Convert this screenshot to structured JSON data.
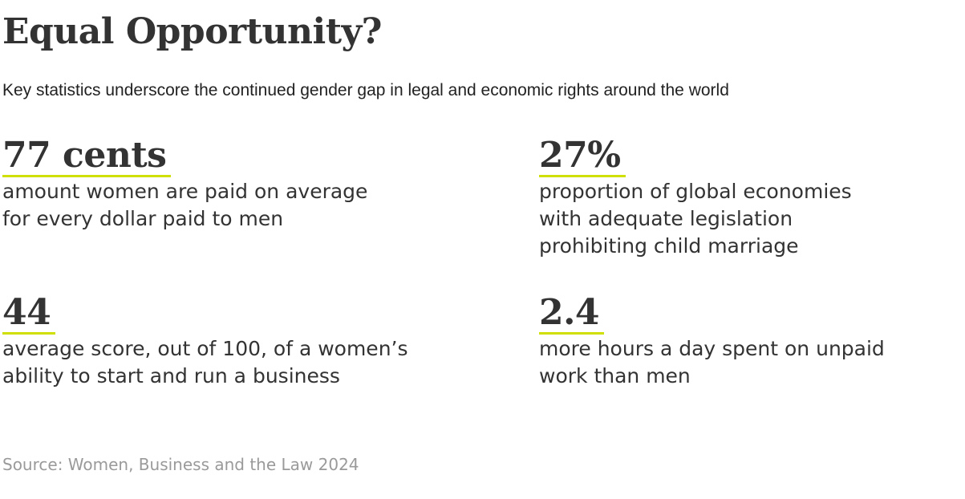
{
  "title": "Equal Opportunity?",
  "subtitle": "Key statistics underscore the continued gender gap in legal and economic rights around the world",
  "accent_color": "#cfe000",
  "stats": [
    {
      "value": "77 cents",
      "description": "amount women are paid on average\nfor every dollar paid to men"
    },
    {
      "value": "27%",
      "description": "proportion of global economies\nwith adequate legislation\nprohibiting child marriage"
    },
    {
      "value": "44",
      "description": "average score, out of 100, of a women’s\nability to start and run a business"
    },
    {
      "value": "2.4",
      "description": "more hours a day spent on unpaid\nwork than men"
    }
  ],
  "source": "Source: Women, Business and the Law 2024"
}
